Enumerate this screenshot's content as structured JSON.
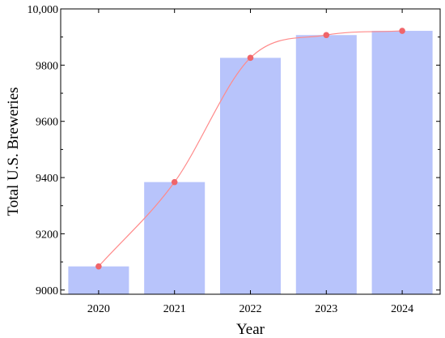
{
  "chart_data": {
    "type": "bar",
    "title": "",
    "xlabel": "Year",
    "ylabel": "Total U.S. Breweries",
    "categories": [
      "2020",
      "2021",
      "2022",
      "2023",
      "2024"
    ],
    "series": [
      {
        "values": [
          9084,
          9384,
          9826,
          9907,
          9922
        ]
      }
    ],
    "overlay_line": {
      "values": [
        9084,
        9384,
        9826,
        9907,
        9922
      ]
    },
    "ylim": [
      8985,
      10000
    ],
    "yticks": [
      9000,
      9200,
      9400,
      9600,
      9800,
      10000
    ],
    "ytick_labels": [
      "9000",
      "9200",
      "9400",
      "9600",
      "9800",
      "10,000"
    ],
    "grid": false,
    "legend": "none",
    "colors": {
      "bar": "#b8c4fb",
      "line": "#ff8a8a",
      "marker": "#f0656a",
      "axis": "#000000"
    }
  }
}
